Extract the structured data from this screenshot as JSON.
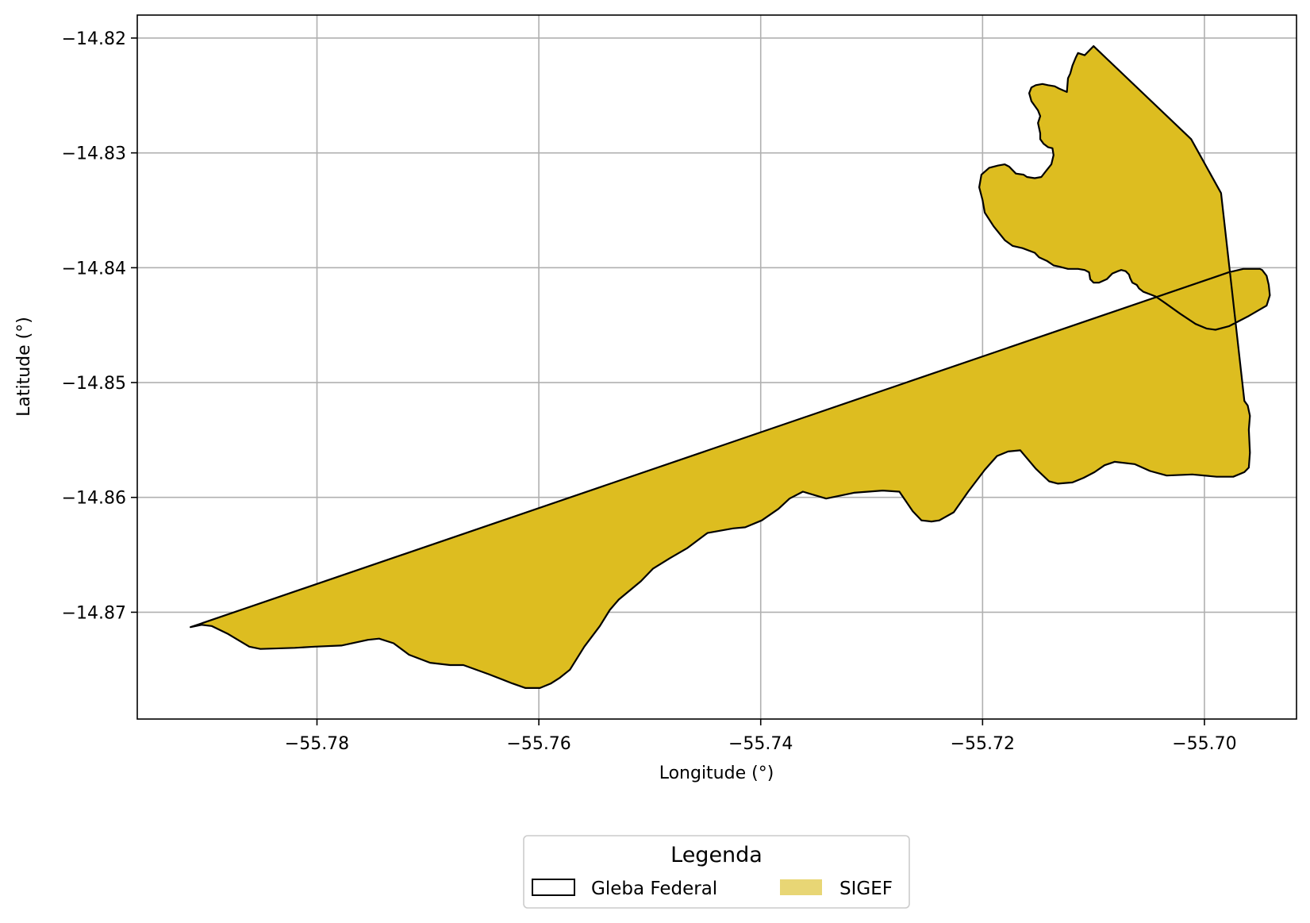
{
  "chart_data": {
    "type": "map",
    "xlabel": "Longitude (°)",
    "ylabel": "Latitude (°)",
    "xlim": [
      -55.7962,
      -55.6917
    ],
    "ylim": [
      -14.8793,
      -14.818
    ],
    "xticks": [
      -55.78,
      -55.76,
      -55.74,
      -55.72,
      -55.7
    ],
    "xtick_labels": [
      "−55.78",
      "−55.76",
      "−55.74",
      "−55.72",
      "−55.70"
    ],
    "yticks": [
      -14.82,
      -14.83,
      -14.84,
      -14.85,
      -14.86,
      -14.87
    ],
    "ytick_labels": [
      "−14.82",
      "−14.83",
      "−14.84",
      "−14.85",
      "−14.86",
      "−14.87"
    ],
    "grid": true,
    "legend": {
      "title": "Legenda",
      "placement": "bottom-center",
      "entries": [
        {
          "label": "Gleba Federal",
          "style": "outline",
          "color": "#000000"
        },
        {
          "label": "SIGEF",
          "style": "fill",
          "color": "#E8D675"
        }
      ]
    },
    "fill_color": "#DDBD20",
    "edge_color": "#000000",
    "polygon": [
      [
        -55.7914,
        -14.8713
      ],
      [
        -55.7904,
        -14.8711
      ],
      [
        -55.7895,
        -14.8712
      ],
      [
        -55.788,
        -14.8719
      ],
      [
        -55.7861,
        -14.873
      ],
      [
        -55.7851,
        -14.8732
      ],
      [
        -55.782,
        -14.8731
      ],
      [
        -55.7802,
        -14.873
      ],
      [
        -55.7778,
        -14.8729
      ],
      [
        -55.7754,
        -14.8724
      ],
      [
        -55.7744,
        -14.8723
      ],
      [
        -55.7731,
        -14.8727
      ],
      [
        -55.7717,
        -14.8737
      ],
      [
        -55.7698,
        -14.8744
      ],
      [
        -55.768,
        -14.8746
      ],
      [
        -55.7668,
        -14.8746
      ],
      [
        -55.7645,
        -14.8754
      ],
      [
        -55.7624,
        -14.8762
      ],
      [
        -55.7612,
        -14.8766
      ],
      [
        -55.7599,
        -14.8766
      ],
      [
        -55.7589,
        -14.8762
      ],
      [
        -55.7581,
        -14.8757
      ],
      [
        -55.7572,
        -14.875
      ],
      [
        -55.7559,
        -14.873
      ],
      [
        -55.7545,
        -14.8712
      ],
      [
        -55.7536,
        -14.8698
      ],
      [
        -55.7528,
        -14.8689
      ],
      [
        -55.7508,
        -14.8673
      ],
      [
        -55.7497,
        -14.8662
      ],
      [
        -55.7482,
        -14.8653
      ],
      [
        -55.7466,
        -14.8644
      ],
      [
        -55.7448,
        -14.8631
      ],
      [
        -55.7425,
        -14.8627
      ],
      [
        -55.7414,
        -14.8626
      ],
      [
        -55.7399,
        -14.862
      ],
      [
        -55.7384,
        -14.861
      ],
      [
        -55.7374,
        -14.8601
      ],
      [
        -55.7362,
        -14.8595
      ],
      [
        -55.7341,
        -14.8601
      ],
      [
        -55.7316,
        -14.8596
      ],
      [
        -55.729,
        -14.8594
      ],
      [
        -55.7275,
        -14.8595
      ],
      [
        -55.7263,
        -14.8612
      ],
      [
        -55.7255,
        -14.862
      ],
      [
        -55.7246,
        -14.8621
      ],
      [
        -55.7239,
        -14.862
      ],
      [
        -55.7226,
        -14.8613
      ],
      [
        -55.7213,
        -14.8595
      ],
      [
        -55.7198,
        -14.8576
      ],
      [
        -55.7187,
        -14.8564
      ],
      [
        -55.7177,
        -14.856
      ],
      [
        -55.7166,
        -14.8559
      ],
      [
        -55.7152,
        -14.8575
      ],
      [
        -55.714,
        -14.8586
      ],
      [
        -55.7132,
        -14.8588
      ],
      [
        -55.7119,
        -14.8587
      ],
      [
        -55.7109,
        -14.8583
      ],
      [
        -55.7099,
        -14.8578
      ],
      [
        -55.709,
        -14.8572
      ],
      [
        -55.7081,
        -14.8569
      ],
      [
        -55.7063,
        -14.8571
      ],
      [
        -55.7049,
        -14.8577
      ],
      [
        -55.7034,
        -14.8581
      ],
      [
        -55.7011,
        -14.858
      ],
      [
        -55.6989,
        -14.8582
      ],
      [
        -55.6974,
        -14.8582
      ],
      [
        -55.6964,
        -14.8578
      ],
      [
        -55.696,
        -14.8574
      ],
      [
        -55.6959,
        -14.8561
      ],
      [
        -55.696,
        -14.8541
      ],
      [
        -55.6959,
        -14.8529
      ],
      [
        -55.6961,
        -14.852
      ],
      [
        -55.6964,
        -14.8516
      ],
      [
        -55.6985,
        -14.8335
      ],
      [
        -55.7012,
        -14.8288
      ],
      [
        -55.71,
        -14.8207
      ],
      [
        -55.7108,
        -14.8215
      ],
      [
        -55.7111,
        -14.8214
      ],
      [
        -55.7114,
        -14.8213
      ],
      [
        -55.7116,
        -14.8217
      ],
      [
        -55.7119,
        -14.8224
      ],
      [
        -55.7121,
        -14.8231
      ],
      [
        -55.7123,
        -14.8235
      ],
      [
        -55.7124,
        -14.8247
      ],
      [
        -55.7131,
        -14.8244
      ],
      [
        -55.7135,
        -14.8242
      ],
      [
        -55.7141,
        -14.8241
      ],
      [
        -55.7146,
        -14.824
      ],
      [
        -55.7152,
        -14.8241
      ],
      [
        -55.7156,
        -14.8243
      ],
      [
        -55.7158,
        -14.8248
      ],
      [
        -55.7156,
        -14.8255
      ],
      [
        -55.715,
        -14.8263
      ],
      [
        -55.7148,
        -14.8268
      ],
      [
        -55.715,
        -14.8274
      ],
      [
        -55.7148,
        -14.8283
      ],
      [
        -55.7148,
        -14.8288
      ],
      [
        -55.7145,
        -14.8292
      ],
      [
        -55.7141,
        -14.8295
      ],
      [
        -55.7137,
        -14.8296
      ],
      [
        -55.7136,
        -14.8302
      ],
      [
        -55.7138,
        -14.831
      ],
      [
        -55.7143,
        -14.8316
      ],
      [
        -55.7147,
        -14.8321
      ],
      [
        -55.7153,
        -14.8322
      ],
      [
        -55.716,
        -14.8321
      ],
      [
        -55.7163,
        -14.8319
      ],
      [
        -55.717,
        -14.8318
      ],
      [
        -55.7176,
        -14.8312
      ],
      [
        -55.718,
        -14.831
      ],
      [
        -55.7186,
        -14.8311
      ],
      [
        -55.7194,
        -14.8313
      ],
      [
        -55.7201,
        -14.8319
      ],
      [
        -55.7203,
        -14.833
      ],
      [
        -55.72,
        -14.8341
      ],
      [
        -55.7198,
        -14.8352
      ],
      [
        -55.719,
        -14.8364
      ],
      [
        -55.718,
        -14.8376
      ],
      [
        -55.7173,
        -14.8381
      ],
      [
        -55.7164,
        -14.8383
      ],
      [
        -55.7153,
        -14.8387
      ],
      [
        -55.7149,
        -14.8391
      ],
      [
        -55.7142,
        -14.8394
      ],
      [
        -55.7136,
        -14.8398
      ],
      [
        -55.7131,
        -14.8399
      ],
      [
        -55.7123,
        -14.8401
      ],
      [
        -55.7114,
        -14.8401
      ],
      [
        -55.7108,
        -14.8402
      ],
      [
        -55.7104,
        -14.8404
      ],
      [
        -55.7103,
        -14.841
      ],
      [
        -55.71,
        -14.8413
      ],
      [
        -55.7095,
        -14.8413
      ],
      [
        -55.7088,
        -14.841
      ],
      [
        -55.7083,
        -14.8405
      ],
      [
        -55.7078,
        -14.8403
      ],
      [
        -55.7075,
        -14.8402
      ],
      [
        -55.7071,
        -14.8403
      ],
      [
        -55.7068,
        -14.8406
      ],
      [
        -55.7067,
        -14.8409
      ],
      [
        -55.7065,
        -14.8413
      ],
      [
        -55.7061,
        -14.8415
      ],
      [
        -55.7059,
        -14.8418
      ],
      [
        -55.7055,
        -14.8421
      ],
      [
        -55.7044,
        -14.8425
      ],
      [
        -55.7035,
        -14.8431
      ],
      [
        -55.7022,
        -14.844
      ],
      [
        -55.7008,
        -14.8449
      ],
      [
        -55.6998,
        -14.8453
      ],
      [
        -55.699,
        -14.8454
      ],
      [
        -55.6978,
        -14.8451
      ],
      [
        -55.696,
        -14.8442
      ],
      [
        -55.6944,
        -14.8433
      ],
      [
        -55.6941,
        -14.8424
      ],
      [
        -55.6942,
        -14.8415
      ],
      [
        -55.6944,
        -14.8407
      ],
      [
        -55.6948,
        -14.8402
      ],
      [
        -55.695,
        -14.8401
      ],
      [
        -55.6958,
        -14.8401
      ],
      [
        -55.6965,
        -14.8401
      ],
      [
        -55.6978,
        -14.8404
      ]
    ]
  }
}
